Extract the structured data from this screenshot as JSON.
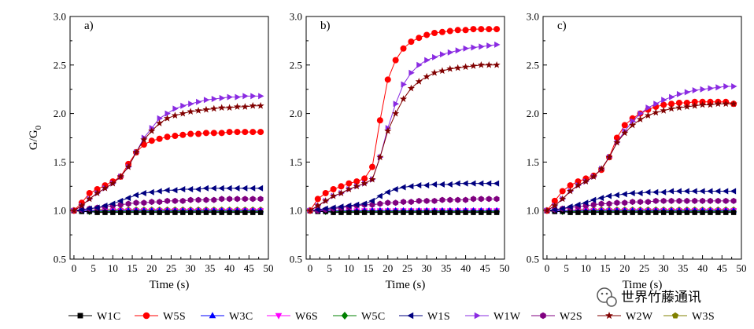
{
  "chart_data": [
    {
      "type": "line",
      "panel_label": "a)",
      "xlabel": "Time (s)",
      "ylabel": "G/G",
      "ylabel_subscript": "0",
      "xlim": [
        -1,
        50
      ],
      "ylim": [
        0.5,
        3.0
      ],
      "xticks": [
        "0",
        "5",
        "10",
        "15",
        "20",
        "25",
        "30",
        "35",
        "40",
        "45",
        "50"
      ],
      "yticks": [
        "0.5",
        "1.0",
        "1.5",
        "2.0",
        "2.5",
        "3.0"
      ],
      "x": [
        0,
        2,
        4,
        6,
        8,
        10,
        12,
        14,
        16,
        18,
        20,
        22,
        24,
        26,
        28,
        30,
        32,
        34,
        36,
        38,
        40,
        42,
        44,
        46,
        48
      ],
      "series": [
        {
          "name": "W1C",
          "values": [
            1.0,
            0.99,
            0.99,
            0.98,
            0.98,
            0.98,
            0.98,
            0.98,
            0.98,
            0.98,
            0.98,
            0.98,
            0.98,
            0.98,
            0.98,
            0.98,
            0.98,
            0.98,
            0.98,
            0.98,
            0.98,
            0.98,
            0.98,
            0.98,
            0.98
          ]
        },
        {
          "name": "W5S",
          "values": [
            1.0,
            1.08,
            1.18,
            1.22,
            1.26,
            1.3,
            1.35,
            1.48,
            1.6,
            1.68,
            1.72,
            1.74,
            1.76,
            1.77,
            1.78,
            1.79,
            1.79,
            1.8,
            1.8,
            1.8,
            1.81,
            1.81,
            1.81,
            1.81,
            1.81
          ]
        },
        {
          "name": "W3C",
          "values": [
            1.0,
            1.0,
            1.0,
            1.0,
            1.0,
            1.0,
            1.0,
            1.0,
            1.0,
            1.0,
            1.0,
            1.0,
            1.0,
            1.0,
            1.0,
            1.0,
            1.0,
            1.0,
            1.0,
            1.0,
            1.0,
            1.0,
            1.0,
            1.0,
            1.0
          ]
        },
        {
          "name": "W6S",
          "values": [
            1.0,
            1.0,
            1.0,
            1.0,
            1.0,
            1.0,
            1.0,
            1.0,
            1.0,
            1.0,
            1.0,
            1.0,
            1.0,
            1.0,
            1.0,
            1.0,
            1.0,
            1.0,
            1.0,
            1.0,
            1.0,
            1.0,
            1.0,
            1.0,
            1.0
          ]
        },
        {
          "name": "W5C",
          "values": [
            1.0,
            1.0,
            0.99,
            0.99,
            0.99,
            0.99,
            0.99,
            0.99,
            0.99,
            0.99,
            0.99,
            0.99,
            0.99,
            0.99,
            0.99,
            0.99,
            0.99,
            0.99,
            0.99,
            0.99,
            0.99,
            0.99,
            0.99,
            0.99,
            0.99
          ]
        },
        {
          "name": "W1S",
          "values": [
            1.0,
            1.01,
            1.02,
            1.03,
            1.05,
            1.07,
            1.1,
            1.13,
            1.16,
            1.18,
            1.19,
            1.2,
            1.21,
            1.21,
            1.22,
            1.22,
            1.22,
            1.23,
            1.23,
            1.23,
            1.23,
            1.23,
            1.23,
            1.23,
            1.23
          ]
        },
        {
          "name": "W1W",
          "values": [
            1.0,
            1.05,
            1.12,
            1.18,
            1.23,
            1.28,
            1.35,
            1.45,
            1.6,
            1.75,
            1.85,
            1.95,
            2.0,
            2.05,
            2.08,
            2.1,
            2.12,
            2.14,
            2.15,
            2.16,
            2.17,
            2.17,
            2.18,
            2.18,
            2.18
          ]
        },
        {
          "name": "W2S",
          "values": [
            1.0,
            1.01,
            1.02,
            1.03,
            1.04,
            1.05,
            1.06,
            1.07,
            1.08,
            1.08,
            1.09,
            1.09,
            1.1,
            1.1,
            1.1,
            1.11,
            1.11,
            1.11,
            1.11,
            1.12,
            1.12,
            1.12,
            1.12,
            1.12,
            1.12
          ]
        },
        {
          "name": "W2W",
          "values": [
            1.0,
            1.05,
            1.12,
            1.18,
            1.23,
            1.28,
            1.35,
            1.45,
            1.6,
            1.73,
            1.82,
            1.9,
            1.95,
            1.98,
            2.0,
            2.02,
            2.03,
            2.04,
            2.05,
            2.06,
            2.06,
            2.07,
            2.07,
            2.08,
            2.08
          ]
        },
        {
          "name": "W3S",
          "values": [
            1.0,
            1.0,
            1.0,
            1.01,
            1.01,
            1.01,
            1.01,
            1.01,
            1.01,
            1.01,
            1.01,
            1.01,
            1.01,
            1.01,
            1.01,
            1.01,
            1.01,
            1.01,
            1.01,
            1.01,
            1.01,
            1.01,
            1.01,
            1.01,
            1.01
          ]
        }
      ]
    },
    {
      "type": "line",
      "panel_label": "b)",
      "xlabel": "Time (s)",
      "ylabel": "",
      "xlim": [
        -1,
        50
      ],
      "ylim": [
        0.5,
        3.0
      ],
      "xticks": [
        "0",
        "5",
        "10",
        "15",
        "20",
        "25",
        "30",
        "35",
        "40",
        "45",
        "50"
      ],
      "yticks": [
        "0.5",
        "1.0",
        "1.5",
        "2.0",
        "2.5",
        "3.0"
      ],
      "x": [
        0,
        2,
        4,
        6,
        8,
        10,
        12,
        14,
        16,
        18,
        20,
        22,
        24,
        26,
        28,
        30,
        32,
        34,
        36,
        38,
        40,
        42,
        44,
        46,
        48
      ],
      "series": [
        {
          "name": "W1C",
          "values": [
            1.0,
            0.99,
            0.99,
            0.98,
            0.98,
            0.98,
            0.98,
            0.98,
            0.98,
            0.98,
            0.98,
            0.98,
            0.98,
            0.98,
            0.98,
            0.98,
            0.98,
            0.98,
            0.98,
            0.98,
            0.98,
            0.98,
            0.98,
            0.98,
            0.98
          ]
        },
        {
          "name": "W5S",
          "values": [
            1.0,
            1.12,
            1.18,
            1.22,
            1.25,
            1.28,
            1.3,
            1.33,
            1.45,
            1.93,
            2.35,
            2.55,
            2.67,
            2.74,
            2.78,
            2.81,
            2.83,
            2.84,
            2.85,
            2.86,
            2.86,
            2.87,
            2.87,
            2.87,
            2.87
          ]
        },
        {
          "name": "W3C",
          "values": [
            1.0,
            1.0,
            1.0,
            1.0,
            1.0,
            1.0,
            1.0,
            1.0,
            1.0,
            1.0,
            1.0,
            1.0,
            1.0,
            1.0,
            1.0,
            1.0,
            1.0,
            1.0,
            1.0,
            1.0,
            1.0,
            1.0,
            1.0,
            1.0,
            1.0
          ]
        },
        {
          "name": "W6S",
          "values": [
            1.0,
            1.0,
            1.0,
            1.0,
            1.0,
            1.0,
            1.0,
            1.0,
            1.0,
            1.0,
            1.0,
            1.0,
            1.0,
            1.0,
            1.0,
            1.0,
            1.0,
            1.0,
            1.0,
            1.0,
            1.0,
            1.0,
            1.0,
            1.0,
            1.0
          ]
        },
        {
          "name": "W5C",
          "values": [
            1.0,
            1.0,
            0.99,
            0.99,
            0.99,
            0.99,
            0.99,
            0.99,
            0.99,
            0.99,
            0.99,
            0.99,
            0.99,
            0.99,
            0.99,
            0.99,
            0.99,
            0.99,
            0.99,
            0.99,
            0.99,
            0.99,
            0.99,
            0.99,
            0.99
          ]
        },
        {
          "name": "W1S",
          "values": [
            1.0,
            1.01,
            1.02,
            1.03,
            1.04,
            1.05,
            1.06,
            1.07,
            1.1,
            1.15,
            1.19,
            1.22,
            1.24,
            1.25,
            1.26,
            1.26,
            1.27,
            1.27,
            1.27,
            1.28,
            1.28,
            1.28,
            1.28,
            1.28,
            1.28
          ]
        },
        {
          "name": "W1W",
          "values": [
            1.0,
            1.05,
            1.1,
            1.15,
            1.18,
            1.22,
            1.25,
            1.28,
            1.32,
            1.55,
            1.85,
            2.1,
            2.3,
            2.42,
            2.5,
            2.55,
            2.58,
            2.61,
            2.63,
            2.65,
            2.67,
            2.68,
            2.69,
            2.7,
            2.71
          ]
        },
        {
          "name": "W2S",
          "values": [
            1.0,
            1.0,
            1.01,
            1.02,
            1.03,
            1.04,
            1.05,
            1.06,
            1.06,
            1.07,
            1.08,
            1.08,
            1.09,
            1.09,
            1.1,
            1.1,
            1.1,
            1.11,
            1.11,
            1.11,
            1.11,
            1.12,
            1.12,
            1.12,
            1.12
          ]
        },
        {
          "name": "W2W",
          "values": [
            1.0,
            1.05,
            1.1,
            1.15,
            1.18,
            1.22,
            1.25,
            1.28,
            1.32,
            1.55,
            1.82,
            2.0,
            2.15,
            2.26,
            2.33,
            2.38,
            2.42,
            2.44,
            2.46,
            2.47,
            2.48,
            2.49,
            2.5,
            2.5,
            2.5
          ]
        },
        {
          "name": "W3S",
          "values": [
            1.0,
            1.0,
            1.0,
            1.0,
            1.0,
            1.0,
            1.0,
            1.0,
            1.0,
            1.0,
            1.0,
            1.0,
            1.0,
            1.0,
            1.0,
            1.0,
            1.0,
            1.0,
            1.0,
            1.0,
            1.0,
            1.0,
            1.0,
            1.0,
            1.0
          ]
        }
      ]
    },
    {
      "type": "line",
      "panel_label": "c)",
      "xlabel": "Time (s)",
      "ylabel": "",
      "xlim": [
        -1,
        50
      ],
      "ylim": [
        0.5,
        3.0
      ],
      "xticks": [
        "0",
        "5",
        "10",
        "15",
        "20",
        "25",
        "30",
        "35",
        "40",
        "45",
        "50"
      ],
      "yticks": [
        "0.5",
        "1.0",
        "1.5",
        "2.0",
        "2.5",
        "3.0"
      ],
      "x": [
        0,
        2,
        4,
        6,
        8,
        10,
        12,
        14,
        16,
        18,
        20,
        22,
        24,
        26,
        28,
        30,
        32,
        34,
        36,
        38,
        40,
        42,
        44,
        46,
        48
      ],
      "series": [
        {
          "name": "W1C",
          "values": [
            1.0,
            0.99,
            0.99,
            0.98,
            0.98,
            0.98,
            0.98,
            0.98,
            0.98,
            0.98,
            0.98,
            0.98,
            0.98,
            0.98,
            0.98,
            0.98,
            0.98,
            0.98,
            0.98,
            0.98,
            0.98,
            0.98,
            0.98,
            0.98,
            0.98
          ]
        },
        {
          "name": "W5S",
          "values": [
            1.0,
            1.1,
            1.2,
            1.26,
            1.3,
            1.33,
            1.36,
            1.42,
            1.55,
            1.75,
            1.88,
            1.95,
            2.0,
            2.04,
            2.07,
            2.09,
            2.1,
            2.11,
            2.11,
            2.12,
            2.12,
            2.12,
            2.12,
            2.12,
            2.1
          ]
        },
        {
          "name": "W3C",
          "values": [
            1.0,
            1.0,
            1.0,
            1.0,
            1.0,
            1.0,
            1.0,
            1.0,
            1.0,
            1.0,
            1.0,
            1.0,
            1.0,
            1.0,
            1.0,
            1.0,
            1.0,
            1.0,
            1.0,
            1.0,
            1.0,
            1.0,
            1.0,
            1.0,
            1.0
          ]
        },
        {
          "name": "W6S",
          "values": [
            1.0,
            1.0,
            1.0,
            1.0,
            1.0,
            1.0,
            1.0,
            1.0,
            1.0,
            1.0,
            1.0,
            1.0,
            1.0,
            1.0,
            1.0,
            1.0,
            1.0,
            1.0,
            1.0,
            1.0,
            1.0,
            1.0,
            1.0,
            1.0,
            1.0
          ]
        },
        {
          "name": "W5C",
          "values": [
            1.0,
            1.0,
            0.99,
            0.99,
            0.99,
            0.99,
            0.99,
            0.99,
            0.99,
            0.99,
            0.99,
            0.99,
            0.99,
            0.99,
            0.99,
            0.99,
            0.99,
            0.99,
            0.99,
            0.99,
            0.99,
            0.99,
            0.99,
            0.99,
            0.99
          ]
        },
        {
          "name": "W1S",
          "values": [
            1.0,
            1.01,
            1.02,
            1.04,
            1.06,
            1.08,
            1.11,
            1.13,
            1.15,
            1.16,
            1.17,
            1.18,
            1.18,
            1.19,
            1.19,
            1.19,
            1.2,
            1.2,
            1.2,
            1.2,
            1.2,
            1.2,
            1.2,
            1.2,
            1.2
          ]
        },
        {
          "name": "W1W",
          "values": [
            1.0,
            1.05,
            1.12,
            1.2,
            1.26,
            1.3,
            1.35,
            1.43,
            1.55,
            1.7,
            1.82,
            1.92,
            2.0,
            2.06,
            2.1,
            2.14,
            2.17,
            2.2,
            2.22,
            2.24,
            2.25,
            2.26,
            2.27,
            2.28,
            2.28
          ]
        },
        {
          "name": "W2S",
          "values": [
            1.0,
            1.01,
            1.02,
            1.03,
            1.04,
            1.05,
            1.06,
            1.07,
            1.07,
            1.08,
            1.08,
            1.09,
            1.09,
            1.09,
            1.1,
            1.1,
            1.1,
            1.1,
            1.1,
            1.1,
            1.1,
            1.1,
            1.1,
            1.1,
            1.1
          ]
        },
        {
          "name": "W2W",
          "values": [
            1.0,
            1.05,
            1.12,
            1.2,
            1.26,
            1.3,
            1.35,
            1.43,
            1.55,
            1.7,
            1.8,
            1.88,
            1.94,
            1.98,
            2.01,
            2.03,
            2.05,
            2.06,
            2.07,
            2.08,
            2.09,
            2.09,
            2.1,
            2.1,
            2.1
          ]
        },
        {
          "name": "W3S",
          "values": [
            1.0,
            1.0,
            1.0,
            1.0,
            1.01,
            1.01,
            1.01,
            1.01,
            1.01,
            1.01,
            1.01,
            1.01,
            1.01,
            1.01,
            1.01,
            1.01,
            1.01,
            1.01,
            1.01,
            1.01,
            1.01,
            1.01,
            1.01,
            1.01,
            1.01
          ]
        }
      ]
    }
  ],
  "legend": [
    {
      "name": "W1C",
      "color": "#000000",
      "marker": "square"
    },
    {
      "name": "W5S",
      "color": "#ff0000",
      "marker": "circle"
    },
    {
      "name": "W3C",
      "color": "#0000ff",
      "marker": "triangle-up"
    },
    {
      "name": "W6S",
      "color": "#ff00ff",
      "marker": "triangle-down"
    },
    {
      "name": "W5C",
      "color": "#008000",
      "marker": "diamond"
    },
    {
      "name": "W1S",
      "color": "#000080",
      "marker": "triangle-left"
    },
    {
      "name": "W1W",
      "color": "#8a2be2",
      "marker": "triangle-right"
    },
    {
      "name": "W2S",
      "color": "#800080",
      "marker": "hexagon"
    },
    {
      "name": "W2W",
      "color": "#800000",
      "marker": "star"
    },
    {
      "name": "W3S",
      "color": "#808000",
      "marker": "pentagon"
    }
  ],
  "watermark": {
    "text": "世界竹藤通讯",
    "icon": "wechat-icon"
  }
}
